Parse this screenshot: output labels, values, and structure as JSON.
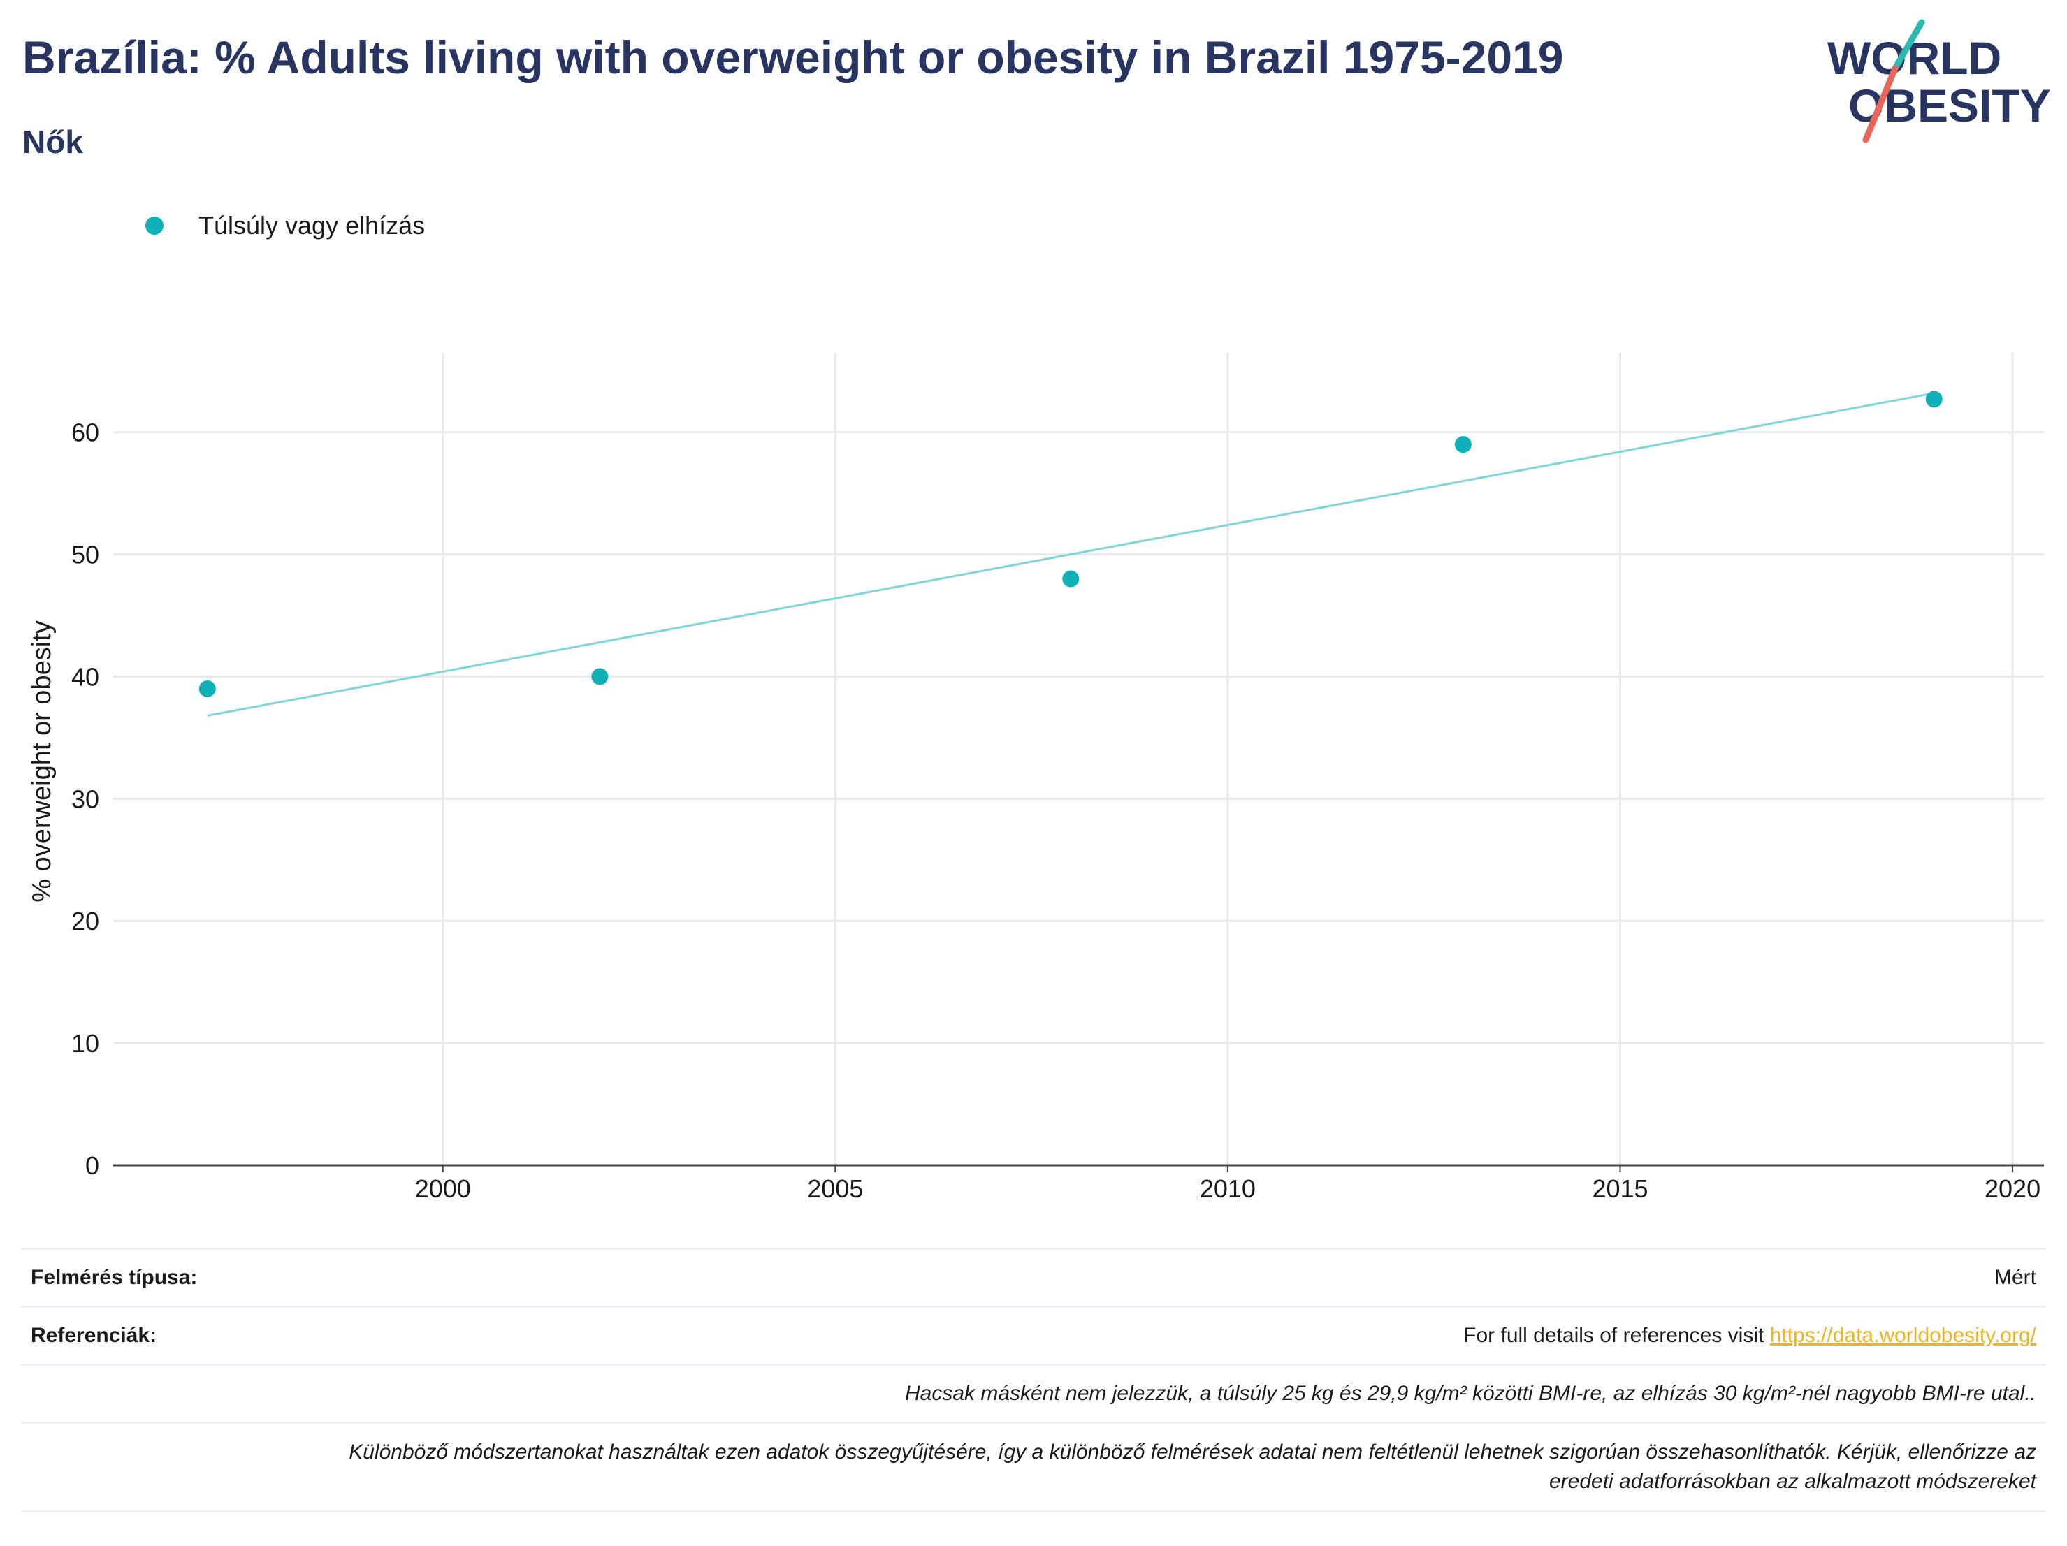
{
  "header": {
    "title": "Brazília: % Adults living with overweight or obesity in Brazil 1975-2019",
    "subtitle": "Nők"
  },
  "logo": {
    "line1": "WORLD",
    "line2": "OBESITY"
  },
  "legend": {
    "label": "Túlsúly vagy elhízás"
  },
  "colors": {
    "series": "#0fb0b8",
    "trend": "#7fd6da",
    "title": "#283562",
    "link": "#f0b323",
    "grid": "#e8e9ee"
  },
  "chart_data": {
    "type": "scatter",
    "xlabel": "",
    "ylabel": "% overweight or obesity",
    "xlim": [
      1995.8,
      2020.4
    ],
    "ylim": [
      0,
      66.5
    ],
    "x_ticks": [
      2000,
      2005,
      2010,
      2015,
      2020
    ],
    "y_ticks": [
      0,
      10,
      20,
      30,
      40,
      50,
      60
    ],
    "grid": true,
    "legend_position": "top-left",
    "series": [
      {
        "name": "Túlsúly vagy elhízás",
        "x": [
          1997,
          2002,
          2008,
          2013,
          2019
        ],
        "y": [
          39,
          40,
          48,
          59,
          62.7
        ]
      }
    ],
    "trendline": {
      "x": [
        1997,
        2019
      ],
      "y": [
        36.8,
        63.2
      ]
    }
  },
  "footer": {
    "survey_type_label": "Felmérés típusa:",
    "survey_type_value": "Mért",
    "references_label": "Referenciák:",
    "references_text": "For full details of references visit ",
    "references_link": "https://data.worldobesity.org/",
    "note1": "Hacsak másként nem jelezzük, a túlsúly 25 kg és 29,9 kg/m² közötti BMI-re, az elhízás 30 kg/m²-nél nagyobb BMI-re utal..",
    "note2_line1": "Különböző módszertanokat használtak ezen adatok összegyűjtésére, így a különböző felmérések adatai nem feltétlenül lehetnek szigorúan összehasonlíthatók. Kérjük, ellenőrizze az",
    "note2_line2": "eredeti adatforrásokban az alkalmazott módszereket"
  }
}
